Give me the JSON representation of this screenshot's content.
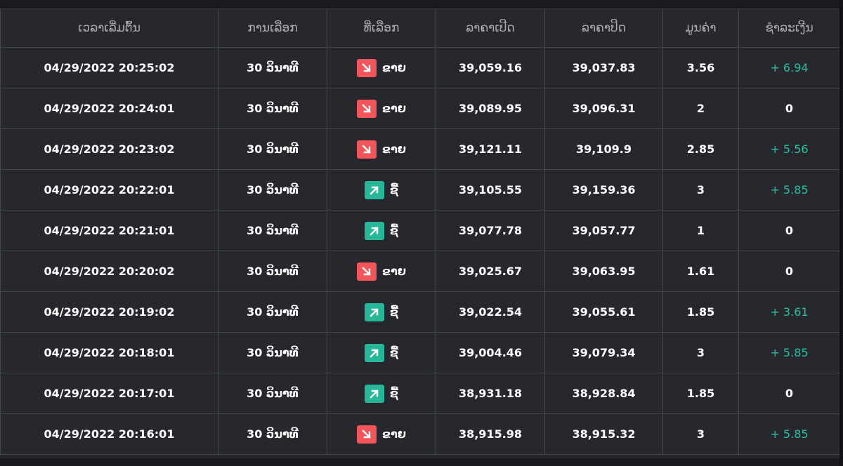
{
  "table": {
    "headers": [
      "ເວລາເລີ່ມຕົ້ນ",
      "ການເລືອກ",
      "ທີ່ເລືອກ",
      "ລາຄາເປີດ",
      "ລາຄາປິດ",
      "ມູນຄ່າ",
      "ຊຳລະເງີນ"
    ],
    "rows": [
      {
        "time": "04/29/2022 20:25:02",
        "duration": "30 ວິນາທີ",
        "direction": "down",
        "direction_label": "ຂາຍ",
        "direction_icon": "arrow-down-right-icon",
        "open": "39,059.16",
        "close": "39,037.83",
        "amount": "3.56",
        "payout": "+ 6.94"
      },
      {
        "time": "04/29/2022 20:24:01",
        "duration": "30 ວິນາທີ",
        "direction": "down",
        "direction_label": "ຂາຍ",
        "direction_icon": "arrow-down-right-icon",
        "open": "39,089.95",
        "close": "39,096.31",
        "amount": "2",
        "payout": "0"
      },
      {
        "time": "04/29/2022 20:23:02",
        "duration": "30 ວິນາທີ",
        "direction": "down",
        "direction_label": "ຂາຍ",
        "direction_icon": "arrow-down-right-icon",
        "open": "39,121.11",
        "close": "39,109.9",
        "amount": "2.85",
        "payout": "+ 5.56"
      },
      {
        "time": "04/29/2022 20:22:01",
        "duration": "30 ວິນາທີ",
        "direction": "up",
        "direction_label": "ຊື້",
        "direction_icon": "arrow-up-right-icon",
        "open": "39,105.55",
        "close": "39,159.36",
        "amount": "3",
        "payout": "+ 5.85"
      },
      {
        "time": "04/29/2022 20:21:01",
        "duration": "30 ວິນາທີ",
        "direction": "up",
        "direction_label": "ຊື້",
        "direction_icon": "arrow-up-right-icon",
        "open": "39,077.78",
        "close": "39,057.77",
        "amount": "1",
        "payout": "0"
      },
      {
        "time": "04/29/2022 20:20:02",
        "duration": "30 ວິນາທີ",
        "direction": "down",
        "direction_label": "ຂາຍ",
        "direction_icon": "arrow-down-right-icon",
        "open": "39,025.67",
        "close": "39,063.95",
        "amount": "1.61",
        "payout": "0"
      },
      {
        "time": "04/29/2022 20:19:02",
        "duration": "30 ວິນາທີ",
        "direction": "up",
        "direction_label": "ຊື້",
        "direction_icon": "arrow-up-right-icon",
        "open": "39,022.54",
        "close": "39,055.61",
        "amount": "1.85",
        "payout": "+ 3.61"
      },
      {
        "time": "04/29/2022 20:18:01",
        "duration": "30 ວິນາທີ",
        "direction": "up",
        "direction_label": "ຊື້",
        "direction_icon": "arrow-up-right-icon",
        "open": "39,004.46",
        "close": "39,079.34",
        "amount": "3",
        "payout": "+ 5.85"
      },
      {
        "time": "04/29/2022 20:17:01",
        "duration": "30 ວິນາທີ",
        "direction": "up",
        "direction_label": "ຊື້",
        "direction_icon": "arrow-up-right-icon",
        "open": "38,931.18",
        "close": "38,928.84",
        "amount": "1.85",
        "payout": "0"
      },
      {
        "time": "04/29/2022 20:16:01",
        "duration": "30 ວິນາທີ",
        "direction": "down",
        "direction_label": "ຂາຍ",
        "direction_icon": "arrow-down-right-icon",
        "open": "38,915.98",
        "close": "38,915.32",
        "amount": "3",
        "payout": "+ 5.85"
      }
    ]
  },
  "colors": {
    "background": "#26282d",
    "sell": "#f2555a",
    "buy": "#27b697",
    "profit": "#2ebd9f",
    "header_text": "#a9abb1"
  }
}
